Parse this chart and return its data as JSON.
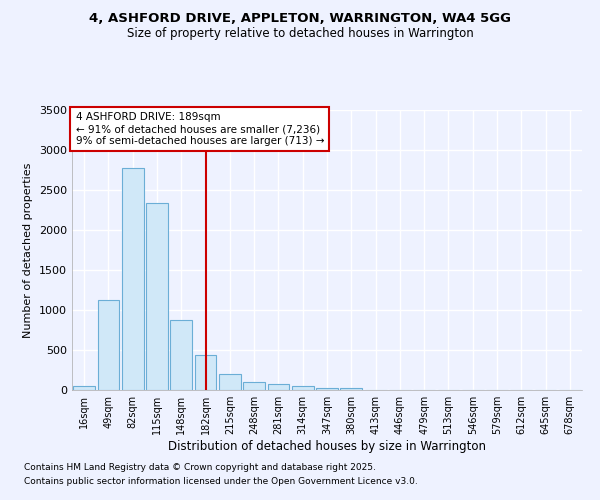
{
  "title_line1": "4, ASHFORD DRIVE, APPLETON, WARRINGTON, WA4 5GG",
  "title_line2": "Size of property relative to detached houses in Warrington",
  "xlabel": "Distribution of detached houses by size in Warrington",
  "ylabel": "Number of detached properties",
  "categories": [
    "16sqm",
    "49sqm",
    "82sqm",
    "115sqm",
    "148sqm",
    "182sqm",
    "215sqm",
    "248sqm",
    "281sqm",
    "314sqm",
    "347sqm",
    "380sqm",
    "413sqm",
    "446sqm",
    "479sqm",
    "513sqm",
    "546sqm",
    "579sqm",
    "612sqm",
    "645sqm",
    "678sqm"
  ],
  "values": [
    50,
    1120,
    2770,
    2340,
    870,
    440,
    200,
    105,
    80,
    55,
    30,
    20,
    5,
    3,
    2,
    1,
    1,
    0,
    0,
    0,
    0
  ],
  "bar_color": "#d0e8f8",
  "bar_edge_color": "#6baed6",
  "vline_x_index": 5,
  "vline_color": "#cc0000",
  "annotation_title": "4 ASHFORD DRIVE: 189sqm",
  "annotation_line2": "← 91% of detached houses are smaller (7,236)",
  "annotation_line3": "9% of semi-detached houses are larger (713) →",
  "annotation_box_color": "#cc0000",
  "ylim": [
    0,
    3500
  ],
  "yticks": [
    0,
    500,
    1000,
    1500,
    2000,
    2500,
    3000,
    3500
  ],
  "background_color": "#eef2ff",
  "plot_bg_color": "#eef2ff",
  "grid_color": "#ffffff",
  "footnote_line1": "Contains HM Land Registry data © Crown copyright and database right 2025.",
  "footnote_line2": "Contains public sector information licensed under the Open Government Licence v3.0."
}
